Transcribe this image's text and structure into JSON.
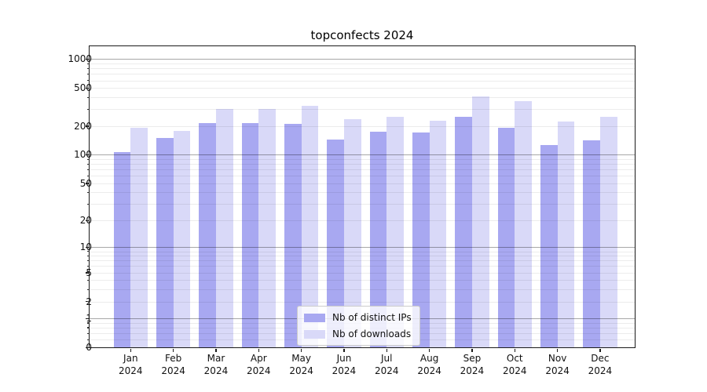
{
  "figure": {
    "title": "topconfects 2024"
  },
  "chart_data": {
    "type": "bar",
    "title": "topconfects 2024",
    "categories": [
      {
        "month": "Jan",
        "year": "2024"
      },
      {
        "month": "Feb",
        "year": "2024"
      },
      {
        "month": "Mar",
        "year": "2024"
      },
      {
        "month": "Apr",
        "year": "2024"
      },
      {
        "month": "May",
        "year": "2024"
      },
      {
        "month": "Jun",
        "year": "2024"
      },
      {
        "month": "Jul",
        "year": "2024"
      },
      {
        "month": "Aug",
        "year": "2024"
      },
      {
        "month": "Sep",
        "year": "2024"
      },
      {
        "month": "Oct",
        "year": "2024"
      },
      {
        "month": "Nov",
        "year": "2024"
      },
      {
        "month": "Dec",
        "year": "2024"
      }
    ],
    "series": [
      {
        "name": "Nb of distinct IPs",
        "color": "#a8a8f1",
        "values": [
          107,
          150,
          214,
          216,
          210,
          144,
          174,
          171,
          248,
          193,
          127,
          142
        ]
      },
      {
        "name": "Nb of downloads",
        "color": "#d9d9f8",
        "values": [
          193,
          177,
          302,
          303,
          328,
          237,
          252,
          227,
          405,
          366,
          223,
          252
        ]
      }
    ],
    "y_axis": {
      "scale": "log1p",
      "ylim": [
        0,
        1363
      ],
      "ticks": [
        0,
        1,
        2,
        5,
        10,
        20,
        50,
        100,
        200,
        500,
        1000
      ],
      "major_gridlines": [
        1,
        10,
        100,
        1000
      ],
      "minor_gridlines": [
        0.2,
        0.4,
        0.6,
        0.8,
        2,
        3,
        4,
        5,
        6,
        7,
        8,
        9,
        20,
        30,
        40,
        50,
        60,
        70,
        80,
        90,
        200,
        300,
        400,
        500,
        600,
        700,
        800,
        900
      ]
    },
    "x_axis": {
      "label": ""
    },
    "grid": "on",
    "legend_position": "lower-center"
  }
}
